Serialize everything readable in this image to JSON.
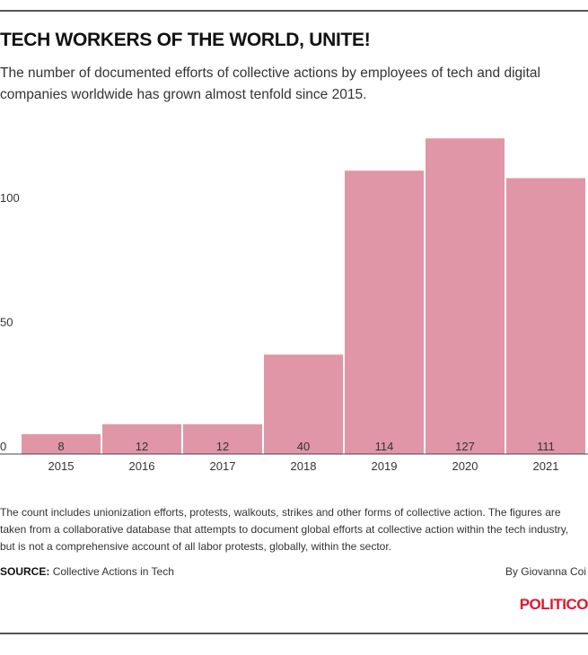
{
  "header": {
    "title": "TECH WORKERS OF THE WORLD, UNITE!",
    "subtitle": "The number of documented efforts of collective actions by employees of tech and digital companies worldwide has grown almost tenfold since 2015."
  },
  "chart_data": {
    "type": "bar",
    "categories": [
      "2015",
      "2016",
      "2017",
      "2018",
      "2019",
      "2020",
      "2021"
    ],
    "values": [
      8,
      12,
      12,
      40,
      114,
      127,
      111
    ],
    "data_labels": [
      "8",
      "12",
      "12",
      "40",
      "114",
      "127",
      "111"
    ],
    "yticks": [
      0,
      50,
      100
    ],
    "ytick_labels": [
      "0",
      "50",
      "100"
    ],
    "ylim": [
      0,
      127
    ],
    "bar_color": "#e096a7",
    "grid": false,
    "xlabel": "",
    "ylabel": ""
  },
  "footer": {
    "note": "The count includes unionization efforts, protests, walkouts, strikes and other forms of collective action. The figures are taken from a collaborative database that attempts to document global efforts at collective action within the tech industry, but is not a comprehensive account of all labor protests, globally, within the sector.",
    "source_label": "SOURCE:",
    "source_text": "Collective Actions in Tech",
    "byline": "By Giovanna Coi",
    "logo": "POLITICO"
  },
  "colors": {
    "accent": "#e8132b",
    "bar": "#e096a7"
  }
}
